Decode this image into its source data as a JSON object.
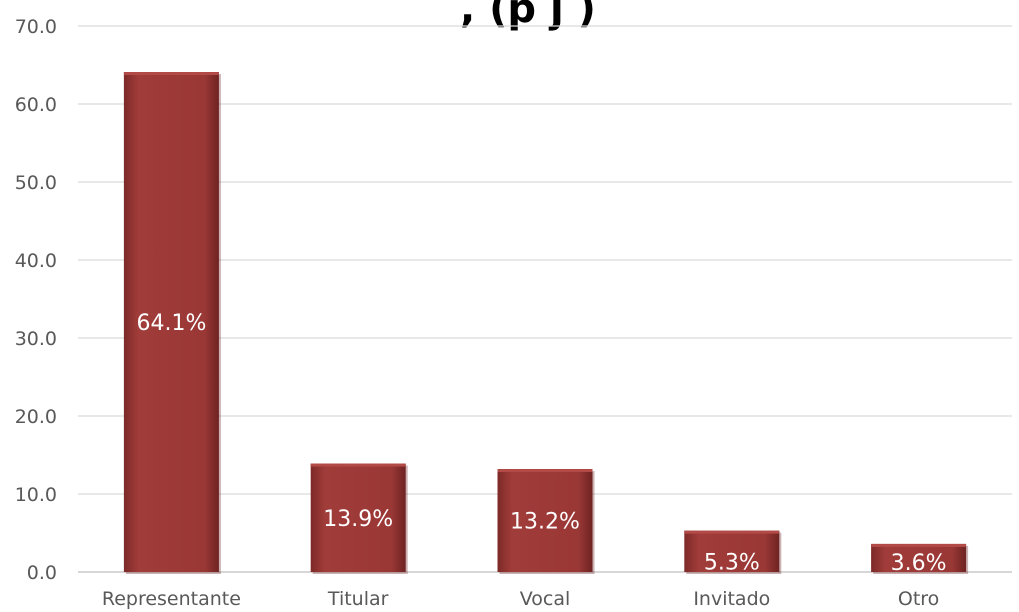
{
  "chart_data": {
    "type": "bar",
    "title": ", (p j )",
    "categories": [
      "Representante",
      "Titular",
      "Vocal",
      "Invitado",
      "Otro"
    ],
    "values": [
      64.1,
      13.9,
      13.2,
      5.3,
      3.6
    ],
    "data_labels": [
      "64.1%",
      "13.9%",
      "13.2%",
      "5.3%",
      "3.6%"
    ],
    "y_ticks": [
      "0.0",
      "10.0",
      "20.0",
      "30.0",
      "40.0",
      "50.0",
      "60.0",
      "70.0"
    ],
    "ylim": [
      0,
      70
    ],
    "grid": true,
    "legend": "none",
    "xlabel": "",
    "ylabel": "",
    "colors": {
      "bar_fill": "#9a3836",
      "bar_top": "#b24a47",
      "bar_shadow": "#6e2322",
      "grid": "#d9d9d9",
      "text": "#595959",
      "data_label": "#ffffff"
    }
  }
}
